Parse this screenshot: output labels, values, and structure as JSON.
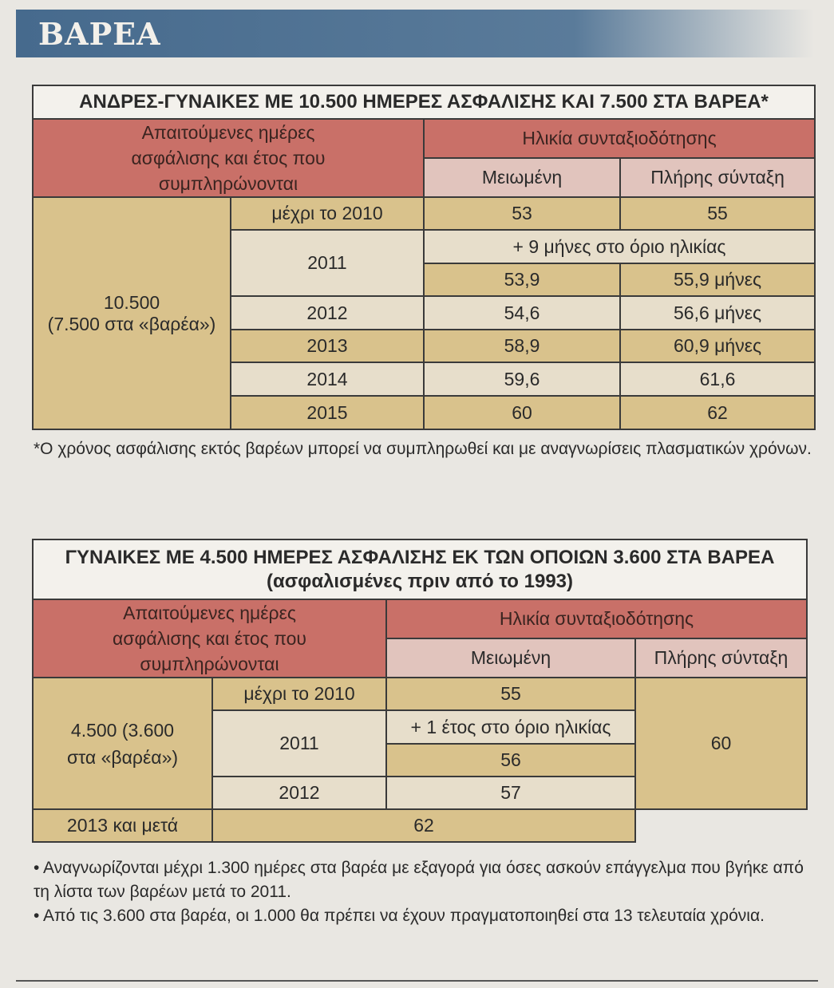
{
  "banner": "ΒΑΡΕΑ",
  "table1": {
    "title": "ΑΝΔΡΕΣ-ΓΥΝΑΙΚΕΣ ΜΕ 10.500 ΗΜΕΡΕΣ ΑΣΦΑΛΙΣΗΣ ΚΑΙ 7.500 ΣΤΑ ΒΑΡΕΑ*",
    "col1_header": "Απαιτούμενες ημέρες ασφάλισης και έτος που συμπληρώνονται",
    "age_header": "Ηλικία συνταξιοδότησης",
    "reduced": "Μειωμένη",
    "full": "Πλήρης σύνταξη",
    "days": "10.500",
    "days_note": "(7.500 στα «βαρέα»)",
    "rows": [
      {
        "year": "μέχρι το 2010",
        "reduced": "53",
        "full": "55"
      },
      {
        "year": "2011",
        "note": "+ 9 μήνες στο όριο ηλικίας",
        "reduced": "53,9",
        "full": "55,9 μήνες"
      },
      {
        "year": "2012",
        "reduced": "54,6",
        "full": "56,6 μήνες"
      },
      {
        "year": "2013",
        "reduced": "58,9",
        "full": "60,9 μήνες"
      },
      {
        "year": "2014",
        "reduced": "59,6",
        "full": "61,6"
      },
      {
        "year": "2015",
        "reduced": "60",
        "full": "62"
      }
    ],
    "footnote": "*Ο χρόνος ασφάλισης εκτός βαρέων μπορεί να συμπληρωθεί και με αναγνωρίσεις πλασματικών χρόνων."
  },
  "table2": {
    "title": "ΓΥΝΑΙΚΕΣ ΜΕ 4.500 ΗΜΕΡΕΣ ΑΣΦΑΛΙΣΗΣ ΕΚ ΤΩΝ ΟΠΟΙΩΝ 3.600 ΣΤΑ ΒΑΡΕΑ",
    "subtitle": "(ασφαλισμένες πριν από το 1993)",
    "col1_header": "Απαιτούμενες ημέρες ασφάλισης και έτος που συμπληρώνονται",
    "age_header": "Ηλικία συνταξιοδότησης",
    "reduced": "Μειωμένη",
    "full": "Πλήρης σύνταξη",
    "days": "4.500 (3.600 στα «βαρέα»)",
    "full_value": "60",
    "rows": [
      {
        "year": "μέχρι το 2010",
        "reduced": "55"
      },
      {
        "year": "2011",
        "note": "+ 1 έτος στο όριο ηλικίας",
        "reduced": "56"
      },
      {
        "year": "2012",
        "reduced": "57"
      },
      {
        "year": "2013 και μετά",
        "reduced": "62"
      }
    ],
    "bullets": [
      "• Αναγνωρίζονται μέχρι 1.300 ημέρες στα βαρέα με εξαγορά για όσες ασκούν επάγγελμα που βγήκε από τη λίστα των βαρέων μετά το 2011.",
      "• Από τις 3.600 στα βαρέα, οι 1.000 θα πρέπει να έχουν πραγματοποιηθεί στα 13 τελευταία χρόνια."
    ]
  }
}
